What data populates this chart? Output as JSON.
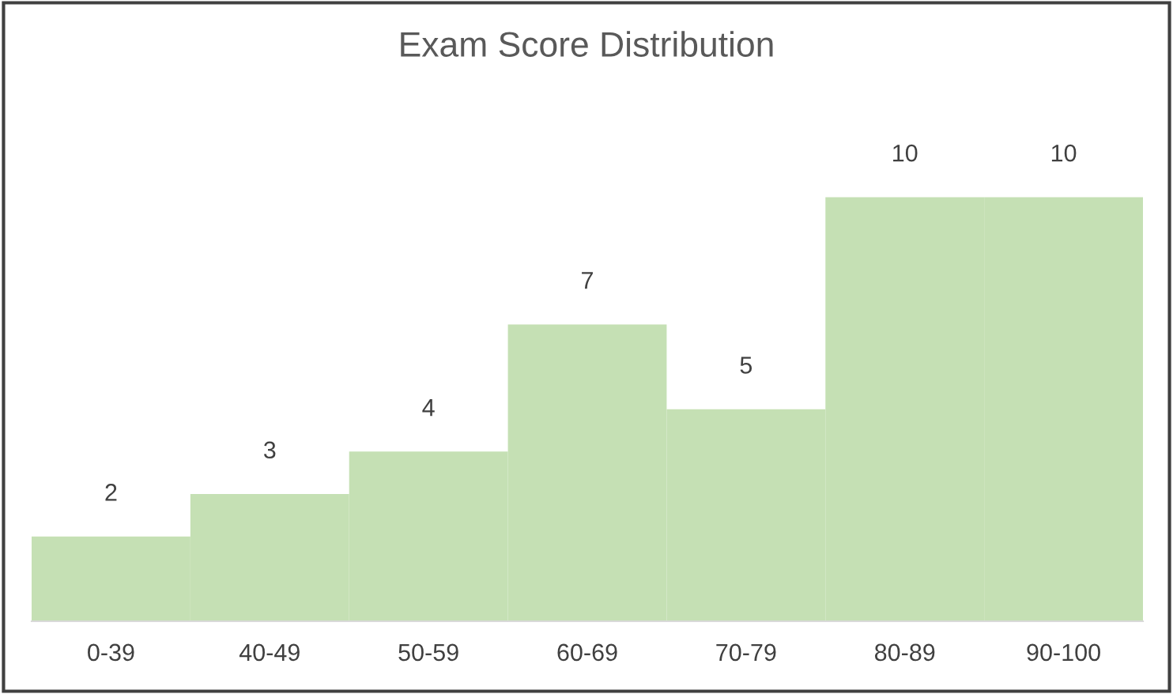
{
  "chart_data": {
    "type": "bar",
    "title": "Exam Score Distribution",
    "categories": [
      "0-39",
      "40-49",
      "50-59",
      "60-69",
      "70-79",
      "80-89",
      "90-100"
    ],
    "values": [
      2,
      3,
      4,
      7,
      5,
      10,
      10
    ],
    "color": "#c5e0b4",
    "data_labels": true,
    "grid": false,
    "legend": false
  }
}
